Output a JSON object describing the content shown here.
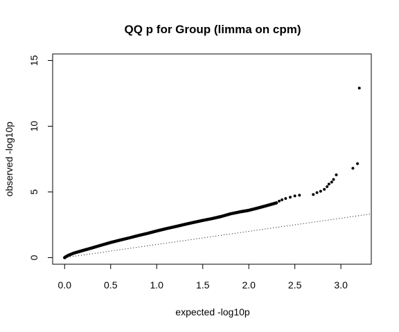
{
  "chart_data": {
    "type": "scatter",
    "title": "QQ p for Group (limma on cpm)",
    "xlabel": "expected -log10p",
    "ylabel": "observed -log10p",
    "xlim": [
      -0.13,
      3.33
    ],
    "ylim": [
      -0.5,
      15.5
    ],
    "x_ticks": [
      "0.0",
      "0.5",
      "1.0",
      "1.5",
      "2.0",
      "2.5",
      "3.0"
    ],
    "y_ticks": [
      "0",
      "5",
      "10",
      "15"
    ],
    "reference_line": {
      "style": "dotted",
      "slope": 1,
      "intercept": 0
    },
    "trend_curve": {
      "x": [
        0.0,
        0.02,
        0.05,
        0.1,
        0.2,
        0.3,
        0.4,
        0.5,
        0.6,
        0.7,
        0.8,
        0.9,
        1.0,
        1.1,
        1.2,
        1.3,
        1.4,
        1.5,
        1.6,
        1.7,
        1.8,
        1.9,
        2.0,
        2.1,
        2.2,
        2.3
      ],
      "y": [
        0.0,
        0.1,
        0.2,
        0.35,
        0.55,
        0.75,
        0.95,
        1.15,
        1.33,
        1.5,
        1.68,
        1.85,
        2.03,
        2.2,
        2.36,
        2.52,
        2.68,
        2.83,
        2.97,
        3.13,
        3.33,
        3.48,
        3.6,
        3.78,
        3.97,
        4.17
      ]
    },
    "tail_points": {
      "x": [
        2.33,
        2.36,
        2.4,
        2.45,
        2.5,
        2.55,
        2.7,
        2.74,
        2.78,
        2.82,
        2.85,
        2.87,
        2.9,
        2.92,
        2.95,
        3.13,
        3.18,
        3.2
      ],
      "y": [
        4.3,
        4.4,
        4.5,
        4.6,
        4.7,
        4.75,
        4.8,
        4.95,
        5.05,
        5.2,
        5.4,
        5.6,
        5.75,
        5.95,
        6.3,
        6.8,
        7.15,
        12.9
      ]
    }
  }
}
